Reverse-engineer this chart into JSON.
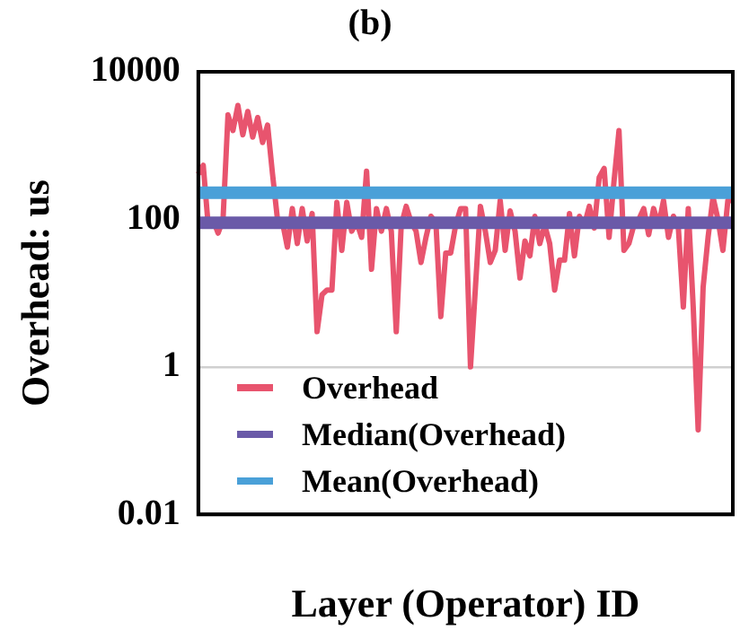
{
  "chart_data": {
    "type": "line",
    "title": "(b)",
    "xlabel": "Layer (Operator) ID",
    "ylabel": "Overhead: us",
    "categories": [
      null,
      null,
      null,
      null,
      null,
      null,
      null,
      null,
      null,
      null,
      null,
      null,
      null,
      null,
      null,
      null,
      null,
      null,
      null,
      null,
      null,
      null,
      null,
      null,
      null,
      null,
      null,
      null,
      null,
      null,
      null,
      null,
      null,
      null,
      null,
      null,
      null,
      null,
      null,
      null,
      null,
      null,
      null,
      null,
      null,
      null,
      null,
      null,
      null,
      null,
      null,
      null,
      null,
      null,
      null,
      null,
      null,
      null,
      null,
      null,
      null,
      null,
      null,
      null,
      null,
      null,
      null,
      null,
      null,
      null,
      null,
      null,
      null,
      null,
      null,
      null,
      null,
      null,
      null,
      null,
      null,
      null,
      null,
      null,
      null,
      null,
      null,
      null,
      null,
      null,
      null,
      null,
      null,
      null,
      null,
      null,
      null,
      null,
      null,
      null,
      null,
      null,
      null,
      null,
      null,
      null,
      null,
      null,
      null
    ],
    "series": [
      {
        "name": "Overhead",
        "color": "#e8546e",
        "values": [
          410,
          540,
          83,
          98,
          65,
          100,
          2600,
          1600,
          3500,
          1400,
          2900,
          1300,
          2400,
          1100,
          1900,
          410,
          100,
          92,
          42,
          140,
          47,
          140,
          51,
          120,
          3,
          9.5,
          11,
          11,
          170,
          38,
          170,
          69,
          92,
          57,
          450,
          21,
          140,
          69,
          140,
          69,
          3,
          83,
          150,
          92,
          69,
          26,
          57,
          110,
          92,
          4.8,
          35,
          35,
          83,
          140,
          140,
          1,
          12,
          150,
          69,
          26,
          38,
          180,
          38,
          130,
          69,
          16,
          51,
          32,
          110,
          47,
          83,
          47,
          11,
          28,
          28,
          120,
          32,
          110,
          83,
          150,
          76,
          370,
          490,
          57,
          330,
          1600,
          38,
          47,
          83,
          100,
          140,
          62,
          140,
          83,
          180,
          57,
          110,
          76,
          6.5,
          140,
          6.5,
          0.14,
          12,
          57,
          200,
          100,
          38,
          180,
          180
        ]
      },
      {
        "name": "Median(Overhead)",
        "color": "#6a5aa8",
        "values": [
          90,
          90,
          90,
          90,
          90,
          90,
          90,
          90,
          90,
          90,
          90,
          90,
          90,
          90,
          90,
          90,
          90,
          90,
          90,
          90,
          90,
          90,
          90,
          90,
          90,
          90,
          90,
          90,
          90,
          90,
          90,
          90,
          90,
          90,
          90,
          90,
          90,
          90,
          90,
          90,
          90,
          90,
          90,
          90,
          90,
          90,
          90,
          90,
          90,
          90,
          90,
          90,
          90,
          90,
          90,
          90,
          90,
          90,
          90,
          90,
          90,
          90,
          90,
          90,
          90,
          90,
          90,
          90,
          90,
          90,
          90,
          90,
          90,
          90,
          90,
          90,
          90,
          90,
          90,
          90,
          90,
          90,
          90,
          90,
          90,
          90,
          90,
          90,
          90,
          90,
          90,
          90,
          90,
          90,
          90,
          90,
          90,
          90,
          90,
          90,
          90,
          90,
          90,
          90,
          90,
          90,
          90,
          90,
          90
        ]
      },
      {
        "name": "Mean(Overhead)",
        "color": "#4aa0d8",
        "values": [
          230,
          230,
          230,
          230,
          230,
          230,
          230,
          230,
          230,
          230,
          230,
          230,
          230,
          230,
          230,
          230,
          230,
          230,
          230,
          230,
          230,
          230,
          230,
          230,
          230,
          230,
          230,
          230,
          230,
          230,
          230,
          230,
          230,
          230,
          230,
          230,
          230,
          230,
          230,
          230,
          230,
          230,
          230,
          230,
          230,
          230,
          230,
          230,
          230,
          230,
          230,
          230,
          230,
          230,
          230,
          230,
          230,
          230,
          230,
          230,
          230,
          230,
          230,
          230,
          230,
          230,
          230,
          230,
          230,
          230,
          230,
          230,
          230,
          230,
          230,
          230,
          230,
          230,
          230,
          230,
          230,
          230,
          230,
          230,
          230,
          230,
          230,
          230,
          230,
          230,
          230,
          230,
          230,
          230,
          230,
          230,
          230,
          230,
          230,
          230,
          230,
          230,
          230,
          230,
          230,
          230,
          230,
          230,
          230
        ]
      }
    ],
    "ylim": [
      0.01,
      10000
    ],
    "yticks": [
      0.01,
      1,
      100,
      10000
    ],
    "log": true,
    "grid": "y",
    "legend": "bottom left",
    "marker": "none",
    "line_style": "solid",
    "tick_labels": "y"
  }
}
